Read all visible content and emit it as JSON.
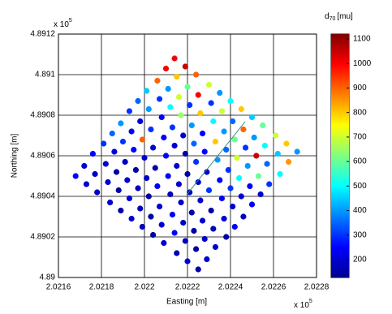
{
  "chart_data": {
    "type": "scatter",
    "xlabel": "Easting [m]",
    "ylabel": "Northing [m]",
    "x_offset_text": {
      "base": "x 10",
      "exponent": "5"
    },
    "y_offset_text": {
      "base": "x 10",
      "exponent": "5"
    },
    "xlim": [
      202160,
      202280
    ],
    "ylim": [
      489000,
      489120
    ],
    "xticks": [
      {
        "value": 202160,
        "label": "2.0216"
      },
      {
        "value": 202180,
        "label": "2.0218"
      },
      {
        "value": 202200,
        "label": "2.022"
      },
      {
        "value": 202220,
        "label": "2.0222"
      },
      {
        "value": 202240,
        "label": "2.0224"
      },
      {
        "value": 202260,
        "label": "2.0226"
      },
      {
        "value": 202280,
        "label": "2.0228"
      }
    ],
    "yticks": [
      {
        "value": 489000,
        "label": "4.89"
      },
      {
        "value": 489020,
        "label": "4.8902"
      },
      {
        "value": 489040,
        "label": "4.8904"
      },
      {
        "value": 489060,
        "label": "4.8906"
      },
      {
        "value": 489080,
        "label": "4.8908"
      },
      {
        "value": 489100,
        "label": "4.891"
      },
      {
        "value": 489120,
        "label": "4.8912"
      }
    ],
    "grid": true,
    "colorbar": {
      "label": {
        "base": "d",
        "subscript": "70",
        "unit": "[mu]"
      },
      "colormap": "jet",
      "clim": [
        127,
        1120
      ],
      "ticks": [
        200,
        300,
        400,
        500,
        600,
        700,
        800,
        900,
        1000,
        1100
      ]
    },
    "x": [
      202214,
      202219,
      202224,
      202230,
      202235,
      202240,
      202245,
      202250,
      202255,
      202261,
      202266,
      202271,
      202210,
      202215,
      202220,
      202225,
      202231,
      202236,
      202241,
      202246,
      202251,
      202256,
      202262,
      202267,
      202206,
      202211,
      202216,
      202221,
      202226,
      202232,
      202237,
      202242,
      202247,
      202252,
      202257,
      202263,
      202201,
      202207,
      202212,
      202217,
      202222,
      202227,
      202233,
      202238,
      202243,
      202248,
      202253,
      202258,
      202197,
      202202,
      202208,
      202213,
      202218,
      202223,
      202228,
      202234,
      202239,
      202244,
      202249,
      202254,
      202193,
      202198,
      202203,
      202209,
      202214,
      202219,
      202224,
      202229,
      202235,
      202240,
      202245,
      202250,
      202189,
      202194,
      202199,
      202204,
      202210,
      202215,
      202220,
      202225,
      202230,
      202236,
      202241,
      202246,
      202185,
      202190,
      202195,
      202200,
      202205,
      202211,
      202216,
      202221,
      202226,
      202231,
      202237,
      202242,
      202181,
      202186,
      202191,
      202196,
      202201,
      202206,
      202212,
      202217,
      202222,
      202227,
      202232,
      202238,
      202176,
      202182,
      202187,
      202192,
      202197,
      202202,
      202207,
      202213,
      202218,
      202223,
      202228,
      202233,
      202172,
      202177,
      202183,
      202188,
      202193,
      202198,
      202203,
      202208,
      202214,
      202219,
      202224,
      202229,
      202168,
      202173,
      202178,
      202184,
      202189,
      202194,
      202199,
      202204,
      202209,
      202215,
      202220,
      202225
    ],
    "y": [
      489108,
      489104,
      489100,
      489095,
      489091,
      489087,
      489083,
      489079,
      489075,
      489070,
      489066,
      489062,
      489103,
      489099,
      489094,
      489090,
      489086,
      489082,
      489077,
      489073,
      489069,
      489065,
      489061,
      489057,
      489097,
      489093,
      489089,
      489085,
      489081,
      489077,
      489072,
      489068,
      489064,
      489060,
      489056,
      489051,
      489092,
      489088,
      489084,
      489080,
      489075,
      489071,
      489067,
      489063,
      489059,
      489055,
      489050,
      489046,
      489087,
      489083,
      489079,
      489074,
      489070,
      489066,
      489062,
      489058,
      489053,
      489049,
      489045,
      489041,
      489082,
      489077,
      489073,
      489069,
      489065,
      489061,
      489057,
      489052,
      489048,
      489044,
      489040,
      489036,
      489076,
      489072,
      489068,
      489064,
      489060,
      489055,
      489051,
      489047,
      489043,
      489039,
      489035,
      489030,
      489071,
      489067,
      489063,
      489059,
      489054,
      489050,
      489046,
      489042,
      489038,
      489033,
      489029,
      489025,
      489066,
      489062,
      489057,
      489053,
      489049,
      489045,
      489041,
      489037,
      489032,
      489028,
      489024,
      489020,
      489061,
      489056,
      489052,
      489048,
      489044,
      489040,
      489035,
      489031,
      489027,
      489023,
      489019,
      489015,
      489055,
      489051,
      489047,
      489043,
      489039,
      489034,
      489030,
      489026,
      489022,
      489018,
      489014,
      489009,
      489050,
      489046,
      489042,
      489037,
      489033,
      489029,
      489025,
      489021,
      489017,
      489012,
      489008,
      489004
    ],
    "values": [
      1000,
      1050,
      900,
      700,
      400,
      500,
      800,
      450,
      600,
      700,
      800,
      400,
      1000,
      800,
      600,
      1000,
      300,
      700,
      350,
      900,
      400,
      500,
      450,
      850,
      900,
      400,
      700,
      300,
      800,
      500,
      400,
      600,
      300,
      1050,
      350,
      500,
      450,
      300,
      500,
      650,
      400,
      250,
      800,
      350,
      700,
      400,
      600,
      300,
      350,
      400,
      250,
      300,
      200,
      350,
      250,
      400,
      300,
      500,
      250,
      200,
      300,
      200,
      300,
      250,
      200,
      150,
      300,
      200,
      250,
      300,
      200,
      250,
      400,
      250,
      900,
      200,
      250,
      200,
      150,
      200,
      300,
      250,
      200,
      180,
      350,
      300,
      250,
      200,
      150,
      250,
      200,
      180,
      200,
      150,
      200,
      250,
      300,
      200,
      180,
      150,
      200,
      250,
      180,
      200,
      150,
      200,
      180,
      150,
      250,
      200,
      150,
      200,
      180,
      150,
      200,
      250,
      180,
      150,
      200,
      200,
      200,
      180,
      200,
      150,
      200,
      180,
      150,
      200,
      250,
      180,
      150,
      200,
      250,
      200,
      180,
      200,
      150,
      200,
      180,
      150,
      200,
      180,
      200,
      150
    ]
  }
}
